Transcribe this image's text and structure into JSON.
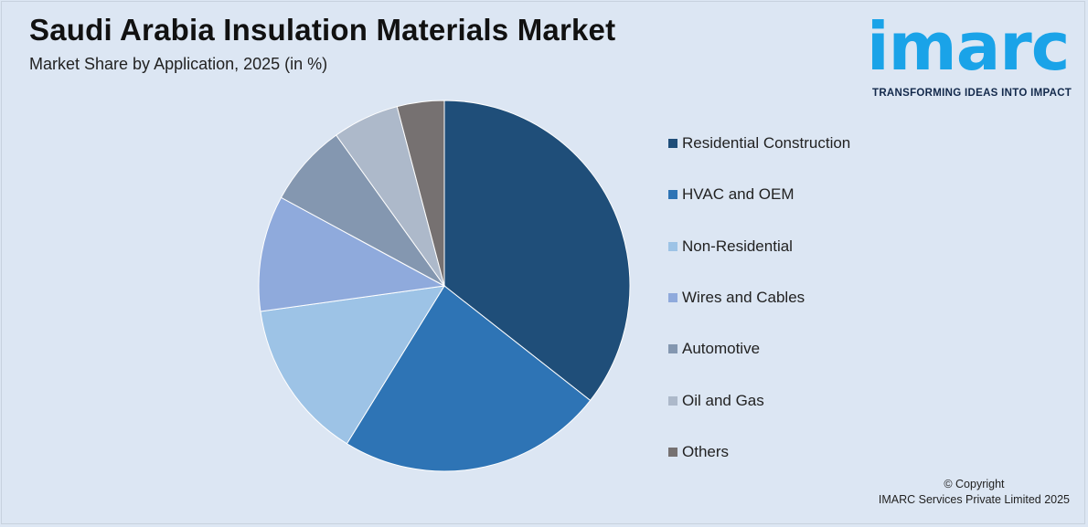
{
  "title": "Saudi Arabia Insulation Materials Market",
  "subtitle": "Market Share by Application, 2025 (in %)",
  "logo": {
    "wordmark": "imarc",
    "tagline": "TRANSFORMING IDEAS INTO IMPACT",
    "color": "#1aa3e8"
  },
  "copyright": {
    "line1": "© Copyright",
    "line2": "IMARC Services Private Limited 2025"
  },
  "chart_data": {
    "type": "pie",
    "title": "Saudi Arabia Insulation Materials Market",
    "subtitle": "Market Share by Application, 2025 (in %)",
    "legend_position": "right",
    "categories": [
      "Residential Construction",
      "HVAC and OEM",
      "Non-Residential",
      "Wires and Cables",
      "Automotive",
      "Oil and Gas",
      "Others"
    ],
    "values": [
      35.6,
      23.2,
      14.0,
      10.1,
      7.2,
      5.8,
      4.1
    ],
    "colors": [
      "#1f4e79",
      "#2e74b5",
      "#9dc3e6",
      "#8faadc",
      "#8497b0",
      "#adb9ca",
      "#767171"
    ]
  }
}
